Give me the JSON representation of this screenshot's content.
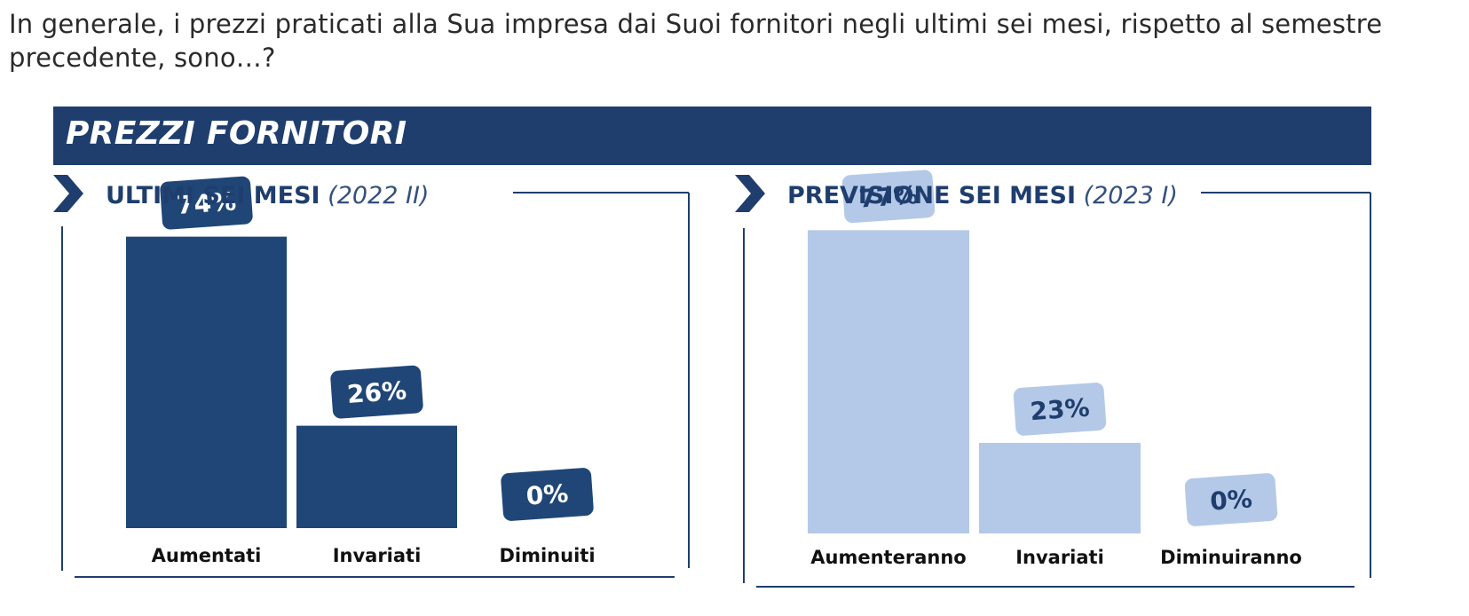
{
  "question": "In generale, i prezzi praticati alla Sua impresa dai Suoi fornitori negli ultimi sei mesi, rispetto al semestre precedente, sono…?",
  "banner_title": "PREZZI FORNITORI",
  "colors": {
    "navy": "#1f4677",
    "light_blue": "#b4c9e8",
    "banner": "#1f3e6e",
    "frame": "#1f3e6e"
  },
  "chart_data": [
    {
      "type": "bar",
      "title": "ULTIMI SEI MESI",
      "subtitle": "(2022 II)",
      "categories": [
        "Aumentati",
        "Invariati",
        "Diminuiti"
      ],
      "values": [
        74,
        26,
        0
      ],
      "value_labels": [
        "74%",
        "26%",
        "0%"
      ],
      "unit": "%",
      "ylim": [
        0,
        80
      ],
      "bar_color": "#1f4677",
      "label_box_color": "#1f4677",
      "label_text_color": "#ffffff"
    },
    {
      "type": "bar",
      "title": "PREVISIONE SEI MESI",
      "subtitle": "(2023 I)",
      "categories": [
        "Aumenteranno",
        "Invariati",
        "Diminuiranno"
      ],
      "values": [
        77,
        23,
        0
      ],
      "value_labels": [
        "77%",
        "23%",
        "0%"
      ],
      "unit": "%",
      "ylim": [
        0,
        80
      ],
      "bar_color": "#b4c9e8",
      "label_box_color": "#b4c9e8",
      "label_text_color": "#1f3e6e"
    }
  ]
}
